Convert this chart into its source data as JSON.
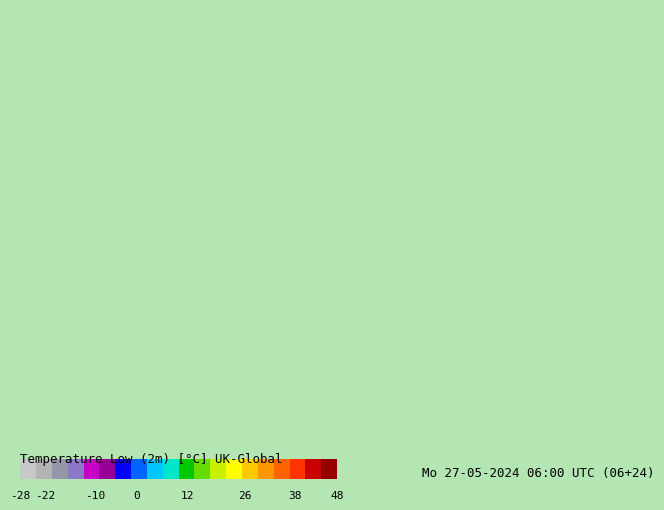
{
  "title_top": "Temperature Low (2m) [°C] UK-Global",
  "title_right": "Mo 27-05-2024 06:00 UTC (06+24)",
  "colorbar_values": [
    -28,
    -22,
    -10,
    0,
    12,
    26,
    38,
    48
  ],
  "colorbar_colors": [
    "#c8c8c8",
    "#b4b4b4",
    "#9696aa",
    "#8c78c8",
    "#c800c8",
    "#960096",
    "#0000ff",
    "#0064ff",
    "#00c8ff",
    "#00e6c8",
    "#00c800",
    "#64dc00",
    "#c8f000",
    "#ffff00",
    "#ffc800",
    "#ff9600",
    "#ff6400",
    "#ff3200",
    "#c80000",
    "#960000"
  ],
  "bg_color": "#b4e6b4",
  "land_color": "#c8f0c8",
  "sea_color": "#d8f0d8",
  "map_bg": "#c8f0c8",
  "border_color": "#000000",
  "font_size_label": 9,
  "font_size_tick": 8
}
